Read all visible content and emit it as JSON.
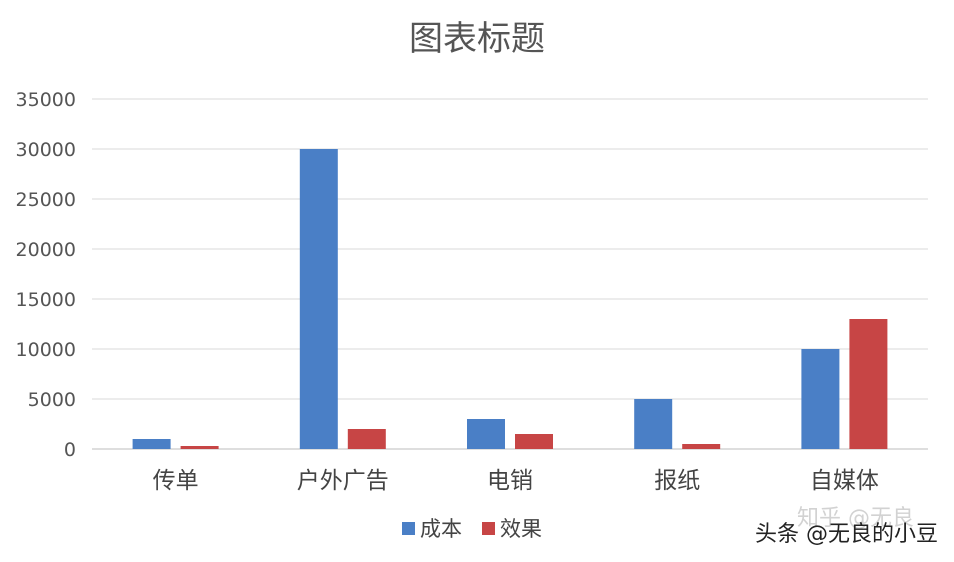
{
  "chart_data": {
    "type": "bar",
    "title": "图表标题",
    "categories": [
      "传单",
      "户外广告",
      "电销",
      "报纸",
      "自媒体"
    ],
    "series": [
      {
        "name": "成本",
        "values": [
          1000,
          30000,
          3000,
          5000,
          10000
        ],
        "color": "#4a7fc6"
      },
      {
        "name": "效果",
        "values": [
          300,
          2000,
          1500,
          500,
          13000
        ],
        "color": "#c74545"
      }
    ],
    "yticks": [
      0,
      5000,
      10000,
      15000,
      20000,
      25000,
      30000,
      35000
    ],
    "ylim": [
      0,
      35000
    ],
    "grid": true,
    "legend": "bottom-center"
  },
  "watermark": {
    "main": "头条 @无良的小豆",
    "faint": "知乎 @无良"
  }
}
